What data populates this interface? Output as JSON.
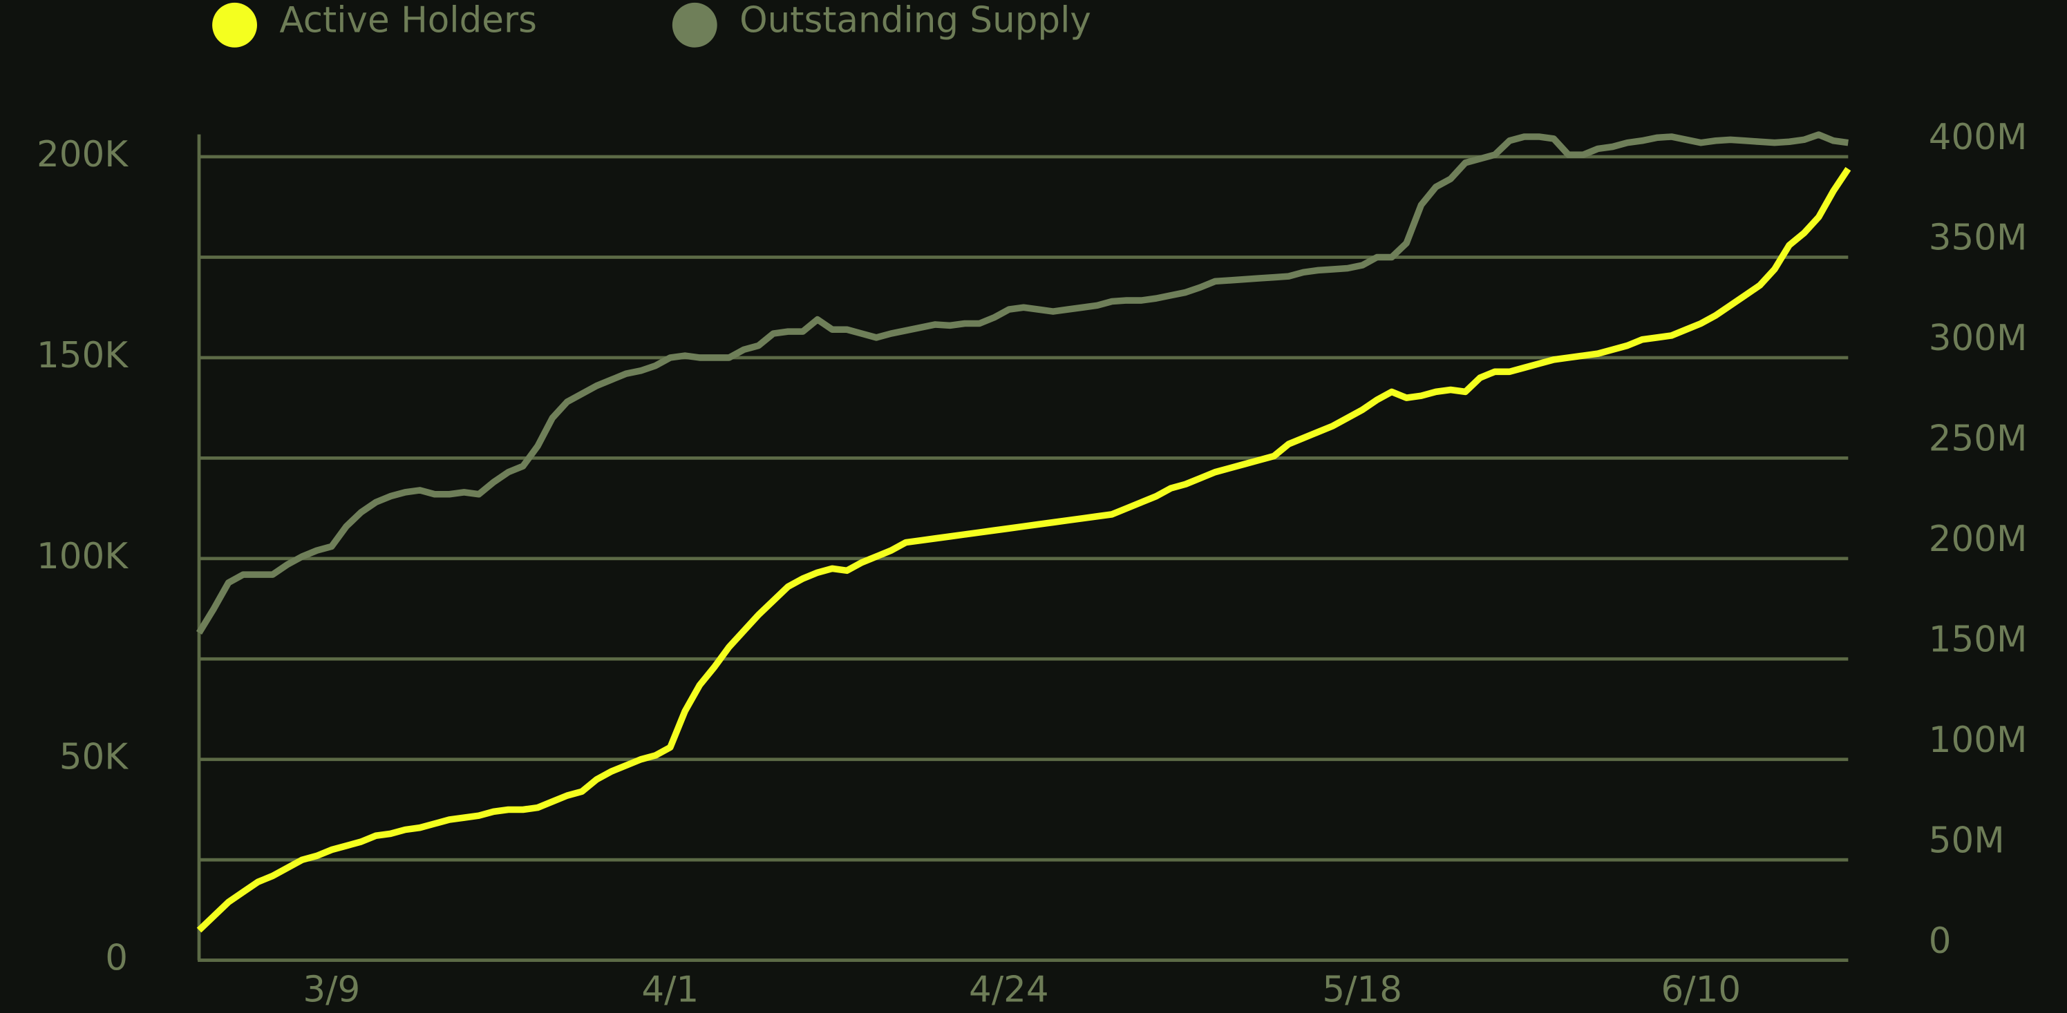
{
  "chart_data": {
    "type": "line",
    "categories": [
      null,
      null,
      null,
      null,
      null,
      null,
      null,
      null,
      null,
      "3/9",
      null,
      null,
      null,
      null,
      null,
      null,
      null,
      null,
      null,
      null,
      null,
      null,
      null,
      null,
      null,
      null,
      null,
      null,
      null,
      null,
      null,
      null,
      "4/1",
      null,
      null,
      null,
      null,
      null,
      null,
      null,
      null,
      null,
      null,
      null,
      null,
      null,
      null,
      null,
      null,
      null,
      null,
      null,
      null,
      null,
      null,
      "4/24",
      null,
      null,
      null,
      null,
      null,
      null,
      null,
      null,
      null,
      null,
      null,
      null,
      null,
      null,
      null,
      null,
      null,
      null,
      null,
      null,
      null,
      null,
      null,
      "5/18",
      null,
      null,
      null,
      null,
      null,
      null,
      null,
      null,
      null,
      null,
      null,
      null,
      null,
      null,
      null,
      null,
      null,
      null,
      null,
      null,
      null,
      null,
      "6/10",
      null,
      null,
      null,
      null,
      null,
      null,
      null,
      null,
      null,
      null
    ],
    "series": [
      {
        "name": "Active Holders",
        "color": "#f4ff1f",
        "axis": "y",
        "values": [
          7500,
          11000,
          14500,
          17000,
          19500,
          21000,
          23000,
          25000,
          26000,
          27500,
          28500,
          29500,
          31000,
          31500,
          32500,
          33000,
          34000,
          35000,
          35500,
          36000,
          37000,
          37500,
          37500,
          38000,
          39500,
          41000,
          42000,
          45000,
          47000,
          48500,
          50000,
          51000,
          53000,
          62000,
          68500,
          73000,
          78000,
          82000,
          86000,
          89500,
          93000,
          95000,
          96500,
          97500,
          97000,
          99000,
          100500,
          102000,
          104000,
          104500,
          105000,
          105500,
          106000,
          106500,
          107000,
          107500,
          108000,
          108500,
          109000,
          109500,
          110000,
          110500,
          111000,
          112500,
          114000,
          115500,
          117500,
          118500,
          120000,
          121500,
          122500,
          123500,
          124500,
          125500,
          128500,
          130000,
          131500,
          133000,
          135000,
          137000,
          139500,
          141500,
          140000,
          140500,
          141500,
          142000,
          141500,
          145000,
          146500,
          146500,
          147500,
          148500,
          149500,
          150000,
          150500,
          151000,
          152000,
          153000,
          154500,
          155000,
          155500,
          157000,
          158500,
          160500,
          163000,
          165500,
          168000,
          172000,
          178000,
          181000,
          185000,
          191500,
          197000
        ]
      },
      {
        "name": "Outstanding Supply",
        "color": "#6f7f59",
        "axis": "y2",
        "values": [
          163000000,
          175000000,
          188000000,
          192000000,
          192000000,
          192000000,
          197000000,
          201000000,
          204000000,
          206000000,
          216000000,
          223000000,
          228000000,
          231000000,
          233000000,
          234000000,
          232000000,
          232000000,
          233000000,
          232000000,
          238000000,
          243000000,
          246000000,
          256000000,
          270000000,
          278000000,
          282000000,
          286000000,
          289000000,
          292000000,
          293500000,
          296000000,
          300000000,
          301000000,
          300000000,
          300000000,
          300000000,
          304000000,
          306000000,
          312000000,
          313000000,
          313000000,
          319000000,
          314000000,
          314000000,
          312000000,
          310000000,
          312000000,
          313500000,
          315000000,
          316500000,
          316000000,
          317000000,
          317000000,
          320000000,
          324000000,
          325000000,
          324000000,
          323000000,
          324000000,
          325000000,
          326000000,
          328000000,
          328500000,
          328500000,
          329500000,
          331000000,
          332500000,
          335000000,
          338000000,
          338500000,
          339000000,
          339500000,
          340000000,
          340500000,
          342500000,
          343500000,
          344000000,
          344500000,
          346000000,
          350000000,
          350000000,
          357000000,
          376000000,
          385000000,
          389000000,
          397000000,
          399000000,
          401000000,
          408000000,
          410000000,
          410000000,
          409000000,
          401000000,
          401000000,
          404000000,
          405000000,
          407000000,
          408000000,
          409500000,
          410000000,
          408500000,
          407000000,
          408000000,
          408500000,
          408000000,
          407500000,
          407000000,
          407500000,
          408500000,
          411000000,
          408000000,
          407000000
        ]
      }
    ],
    "ylim": [
      0,
      200000
    ],
    "yticks": [
      0,
      {
        "value": 50000,
        "label": "50K"
      },
      {
        "value": 100000,
        "label": "100K"
      },
      {
        "value": 150000,
        "label": "150K"
      },
      {
        "value": 200000,
        "label": "200K"
      }
    ],
    "y2lim": [
      0,
      400000000
    ],
    "y2ticks": [
      0,
      {
        "value": 50000000,
        "label": "50M"
      },
      {
        "value": 100000000,
        "label": "100M"
      },
      {
        "value": 150000000,
        "label": "150M"
      },
      {
        "value": 200000000,
        "label": "200M"
      },
      {
        "value": 250000000,
        "label": "250M"
      },
      {
        "value": 300000000,
        "label": "300M"
      },
      {
        "value": 350000000,
        "label": "350M"
      },
      {
        "value": 400000000,
        "label": "400M"
      }
    ],
    "grid": true,
    "legend": "top-left"
  }
}
